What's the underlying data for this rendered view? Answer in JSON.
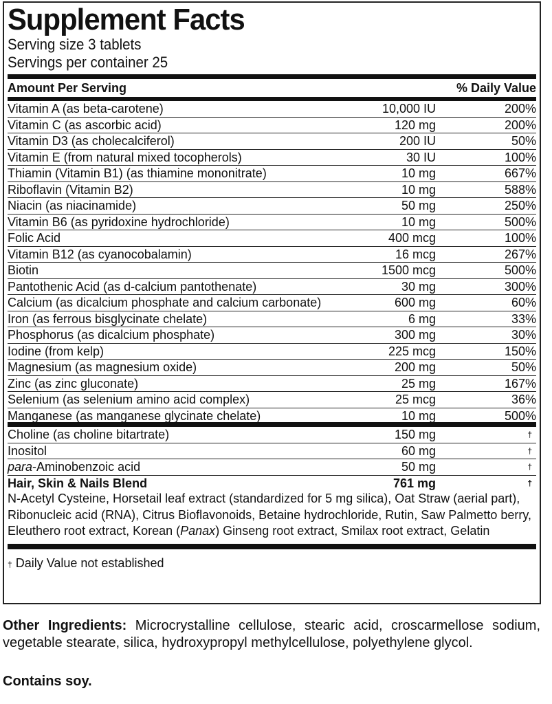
{
  "title": "Supplement Facts",
  "serving_size": "Serving size 3 tablets",
  "servings_per_container": "Servings per container 25",
  "header": {
    "amount": "Amount Per Serving",
    "dv": "% Daily Value"
  },
  "nutrients": [
    {
      "name": "Vitamin A (as beta-carotene)",
      "amount": "10,000 IU",
      "dv": "200%"
    },
    {
      "name": "Vitamin C (as ascorbic acid)",
      "amount": "120 mg",
      "dv": "200%"
    },
    {
      "name": "Vitamin D3 (as cholecalciferol)",
      "amount": "200 IU",
      "dv": "50%"
    },
    {
      "name": "Vitamin E (from natural mixed tocopherols)",
      "amount": "30 IU",
      "dv": "100%"
    },
    {
      "name": "Thiamin (Vitamin B1) (as thiamine mononitrate)",
      "amount": "10 mg",
      "dv": "667%"
    },
    {
      "name": "Riboflavin (Vitamin B2)",
      "amount": "10 mg",
      "dv": "588%"
    },
    {
      "name": "Niacin (as niacinamide)",
      "amount": "50 mg",
      "dv": "250%"
    },
    {
      "name": "Vitamin B6 (as pyridoxine hydrochloride)",
      "amount": "10 mg",
      "dv": "500%"
    },
    {
      "name": "Folic Acid",
      "amount": "400 mcg",
      "dv": "100%"
    },
    {
      "name": "Vitamin B12 (as cyanocobalamin)",
      "amount": "16 mcg",
      "dv": "267%"
    },
    {
      "name": "Biotin",
      "amount": "1500 mcg",
      "dv": "500%"
    },
    {
      "name": "Pantothenic Acid (as d-calcium pantothenate)",
      "amount": "30 mg",
      "dv": "300%"
    },
    {
      "name": "Calcium (as dicalcium phosphate and calcium carbonate)",
      "amount": "600 mg",
      "dv": "60%"
    },
    {
      "name": "Iron (as ferrous bisglycinate chelate)",
      "amount": "6 mg",
      "dv": "33%"
    },
    {
      "name": "Phosphorus (as dicalcium phosphate)",
      "amount": "300 mg",
      "dv": "30%"
    },
    {
      "name": "Iodine (from kelp)",
      "amount": "225 mcg",
      "dv": "150%"
    },
    {
      "name": "Magnesium (as magnesium oxide)",
      "amount": "200 mg",
      "dv": "50%"
    },
    {
      "name": "Zinc (as zinc gluconate)",
      "amount": "25 mg",
      "dv": "167%"
    },
    {
      "name": "Selenium (as selenium amino acid complex)",
      "amount": "25 mcg",
      "dv": "36%"
    },
    {
      "name": "Manganese (as manganese glycinate chelate)",
      "amount": "10 mg",
      "dv": "500%"
    }
  ],
  "others": [
    {
      "name": "Choline (as choline bitartrate)",
      "amount": "150 mg",
      "dv": "†"
    },
    {
      "name": "Inositol",
      "amount": "60 mg",
      "dv": "†"
    },
    {
      "name_italic": "para",
      "name": "-Aminobenzoic acid",
      "amount": "50 mg",
      "dv": "†"
    },
    {
      "name": "Hair, Skin & Nails Blend",
      "amount": "761 mg",
      "dv": "†"
    }
  ],
  "blend": {
    "part1": "N-Acetyl Cysteine, Horsetail leaf extract (standardized for 5 mg silica), Oat Straw (aerial part), Ribonucleic acid (RNA), Citrus Bioflavonoids, Betaine hydrochloride, Rutin, Saw Palmetto berry, Eleuthero root extract, Korean (",
    "italic": "Panax",
    "part2": ") Ginseng root extract, Smilax root extract, Gelatin"
  },
  "footnote": {
    "symbol": "†",
    "text": " Daily Value not established"
  },
  "other_ingredients": {
    "label": "Other Ingredients:",
    "text": " Microcrystalline cellulose, stearic acid, croscarmellose sodium, vegetable stearate, silica, hydroxypropyl methylcellulose, polyethylene glycol."
  },
  "contains": "Contains soy."
}
